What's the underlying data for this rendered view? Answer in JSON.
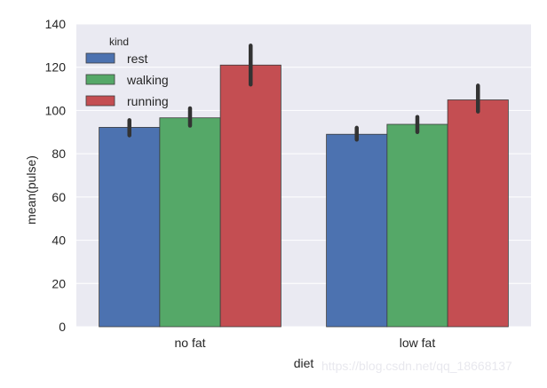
{
  "chart_data": {
    "type": "bar",
    "title": "",
    "xlabel": "diet",
    "ylabel": "mean(pulse)",
    "categories": [
      "no fat",
      "low fat"
    ],
    "series": [
      {
        "name": "rest",
        "color": "#4c72b0",
        "values": [
          92.2,
          89.0
        ],
        "ci": [
          [
            88.5,
            95.5
          ],
          [
            86.5,
            92.0
          ]
        ]
      },
      {
        "name": "walking",
        "color": "#55a868",
        "values": [
          96.6,
          93.6
        ],
        "ci": [
          [
            93.0,
            101.0
          ],
          [
            90.0,
            97.0
          ]
        ]
      },
      {
        "name": "running",
        "color": "#c44e52",
        "values": [
          121.0,
          104.9
        ],
        "ci": [
          [
            112.0,
            130.0
          ],
          [
            99.5,
            111.5
          ]
        ]
      }
    ],
    "ylim": [
      0,
      140
    ],
    "yticks": [
      0,
      20,
      40,
      60,
      80,
      100,
      120,
      140
    ],
    "grid": true,
    "legend": {
      "title": "kind",
      "placement": "top-left"
    },
    "background": "#eaeaf2",
    "errorbar_color": "#333333"
  },
  "watermark": "https://blog.csdn.net/qq_18668137"
}
